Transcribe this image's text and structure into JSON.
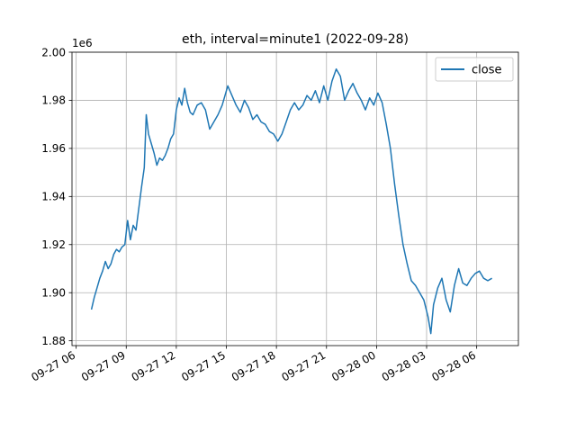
{
  "chart_data": {
    "type": "line",
    "title": "eth, interval=minute1 (2022-09-28)",
    "xlabel": "",
    "ylabel": "",
    "y_scale_note": "1e6",
    "ylim": [
      1878000,
      2000000
    ],
    "xlim": [
      "2022-09-27 05:45",
      "2022-09-28 08:30"
    ],
    "grid": true,
    "legend_position": "top-right",
    "colors": {
      "line": "#1f77b4",
      "grid": "#b0b0b0",
      "axis": "#000000"
    },
    "x_ticks": [
      {
        "t": "2022-09-27 06:00",
        "label": "09-27 06"
      },
      {
        "t": "2022-09-27 09:00",
        "label": "09-27 09"
      },
      {
        "t": "2022-09-27 12:00",
        "label": "09-27 12"
      },
      {
        "t": "2022-09-27 15:00",
        "label": "09-27 15"
      },
      {
        "t": "2022-09-27 18:00",
        "label": "09-27 18"
      },
      {
        "t": "2022-09-27 21:00",
        "label": "09-27 21"
      },
      {
        "t": "2022-09-28 00:00",
        "label": "09-28 00"
      },
      {
        "t": "2022-09-28 03:00",
        "label": "09-28 03"
      },
      {
        "t": "2022-09-28 06:00",
        "label": "09-28 06"
      }
    ],
    "y_ticks": [
      {
        "v": 1880000,
        "label": "1.88"
      },
      {
        "v": 1900000,
        "label": "1.90"
      },
      {
        "v": 1920000,
        "label": "1.92"
      },
      {
        "v": 1940000,
        "label": "1.94"
      },
      {
        "v": 1960000,
        "label": "1.96"
      },
      {
        "v": 1980000,
        "label": "1.98"
      },
      {
        "v": 2000000,
        "label": "2.00"
      }
    ],
    "series": [
      {
        "name": "close",
        "points": [
          [
            "2022-09-27 06:55",
            1893000
          ],
          [
            "2022-09-27 07:05",
            1898000
          ],
          [
            "2022-09-27 07:15",
            1902000
          ],
          [
            "2022-09-27 07:25",
            1906000
          ],
          [
            "2022-09-27 07:35",
            1909000
          ],
          [
            "2022-09-27 07:45",
            1913000
          ],
          [
            "2022-09-27 07:55",
            1910000
          ],
          [
            "2022-09-27 08:05",
            1912000
          ],
          [
            "2022-09-27 08:15",
            1916000
          ],
          [
            "2022-09-27 08:25",
            1918000
          ],
          [
            "2022-09-27 08:35",
            1917000
          ],
          [
            "2022-09-27 08:45",
            1919000
          ],
          [
            "2022-09-27 08:55",
            1920000
          ],
          [
            "2022-09-27 09:05",
            1930000
          ],
          [
            "2022-09-27 09:15",
            1922000
          ],
          [
            "2022-09-27 09:25",
            1928000
          ],
          [
            "2022-09-27 09:35",
            1926000
          ],
          [
            "2022-09-27 09:45",
            1935000
          ],
          [
            "2022-09-27 09:55",
            1944000
          ],
          [
            "2022-09-27 10:05",
            1952000
          ],
          [
            "2022-09-27 10:12",
            1974000
          ],
          [
            "2022-09-27 10:20",
            1966000
          ],
          [
            "2022-09-27 10:30",
            1962000
          ],
          [
            "2022-09-27 10:40",
            1958000
          ],
          [
            "2022-09-27 10:50",
            1953000
          ],
          [
            "2022-09-27 11:00",
            1956000
          ],
          [
            "2022-09-27 11:10",
            1955000
          ],
          [
            "2022-09-27 11:20",
            1957000
          ],
          [
            "2022-09-27 11:30",
            1960000
          ],
          [
            "2022-09-27 11:40",
            1964000
          ],
          [
            "2022-09-27 11:50",
            1966000
          ],
          [
            "2022-09-27 12:00",
            1976000
          ],
          [
            "2022-09-27 12:10",
            1981000
          ],
          [
            "2022-09-27 12:20",
            1978000
          ],
          [
            "2022-09-27 12:30",
            1985000
          ],
          [
            "2022-09-27 12:40",
            1979000
          ],
          [
            "2022-09-27 12:50",
            1975000
          ],
          [
            "2022-09-27 13:00",
            1974000
          ],
          [
            "2022-09-27 13:15",
            1978000
          ],
          [
            "2022-09-27 13:30",
            1979000
          ],
          [
            "2022-09-27 13:45",
            1976000
          ],
          [
            "2022-09-27 14:00",
            1968000
          ],
          [
            "2022-09-27 14:15",
            1971000
          ],
          [
            "2022-09-27 14:30",
            1974000
          ],
          [
            "2022-09-27 14:45",
            1978000
          ],
          [
            "2022-09-27 15:05",
            1986000
          ],
          [
            "2022-09-27 15:20",
            1982000
          ],
          [
            "2022-09-27 15:35",
            1978000
          ],
          [
            "2022-09-27 15:50",
            1975000
          ],
          [
            "2022-09-27 16:05",
            1980000
          ],
          [
            "2022-09-27 16:20",
            1977000
          ],
          [
            "2022-09-27 16:35",
            1972000
          ],
          [
            "2022-09-27 16:50",
            1974000
          ],
          [
            "2022-09-27 17:05",
            1971000
          ],
          [
            "2022-09-27 17:20",
            1970000
          ],
          [
            "2022-09-27 17:35",
            1967000
          ],
          [
            "2022-09-27 17:50",
            1966000
          ],
          [
            "2022-09-27 18:05",
            1963000
          ],
          [
            "2022-09-27 18:20",
            1966000
          ],
          [
            "2022-09-27 18:35",
            1971000
          ],
          [
            "2022-09-27 18:50",
            1976000
          ],
          [
            "2022-09-27 19:05",
            1979000
          ],
          [
            "2022-09-27 19:20",
            1976000
          ],
          [
            "2022-09-27 19:35",
            1978000
          ],
          [
            "2022-09-27 19:50",
            1982000
          ],
          [
            "2022-09-27 20:05",
            1980000
          ],
          [
            "2022-09-27 20:20",
            1984000
          ],
          [
            "2022-09-27 20:35",
            1979000
          ],
          [
            "2022-09-27 20:50",
            1986000
          ],
          [
            "2022-09-27 21:05",
            1980000
          ],
          [
            "2022-09-27 21:20",
            1988000
          ],
          [
            "2022-09-27 21:35",
            1993000
          ],
          [
            "2022-09-27 21:50",
            1990000
          ],
          [
            "2022-09-27 22:05",
            1980000
          ],
          [
            "2022-09-27 22:20",
            1984000
          ],
          [
            "2022-09-27 22:35",
            1987000
          ],
          [
            "2022-09-27 22:50",
            1983000
          ],
          [
            "2022-09-27 23:05",
            1980000
          ],
          [
            "2022-09-27 23:20",
            1976000
          ],
          [
            "2022-09-27 23:35",
            1981000
          ],
          [
            "2022-09-27 23:50",
            1978000
          ],
          [
            "2022-09-28 00:05",
            1983000
          ],
          [
            "2022-09-28 00:20",
            1979000
          ],
          [
            "2022-09-28 00:35",
            1970000
          ],
          [
            "2022-09-28 00:50",
            1960000
          ],
          [
            "2022-09-28 01:05",
            1945000
          ],
          [
            "2022-09-28 01:20",
            1932000
          ],
          [
            "2022-09-28 01:35",
            1920000
          ],
          [
            "2022-09-28 01:50",
            1912000
          ],
          [
            "2022-09-28 02:05",
            1905000
          ],
          [
            "2022-09-28 02:20",
            1903000
          ],
          [
            "2022-09-28 02:35",
            1900000
          ],
          [
            "2022-09-28 02:50",
            1897000
          ],
          [
            "2022-09-28 03:05",
            1890000
          ],
          [
            "2022-09-28 03:15",
            1883000
          ],
          [
            "2022-09-28 03:25",
            1895000
          ],
          [
            "2022-09-28 03:40",
            1902000
          ],
          [
            "2022-09-28 03:55",
            1906000
          ],
          [
            "2022-09-28 04:10",
            1897000
          ],
          [
            "2022-09-28 04:25",
            1892000
          ],
          [
            "2022-09-28 04:40",
            1903000
          ],
          [
            "2022-09-28 04:55",
            1910000
          ],
          [
            "2022-09-28 05:10",
            1904000
          ],
          [
            "2022-09-28 05:25",
            1903000
          ],
          [
            "2022-09-28 05:40",
            1906000
          ],
          [
            "2022-09-28 05:55",
            1908000
          ],
          [
            "2022-09-28 06:10",
            1909000
          ],
          [
            "2022-09-28 06:25",
            1906000
          ],
          [
            "2022-09-28 06:40",
            1905000
          ],
          [
            "2022-09-28 06:55",
            1906000
          ]
        ]
      }
    ]
  }
}
